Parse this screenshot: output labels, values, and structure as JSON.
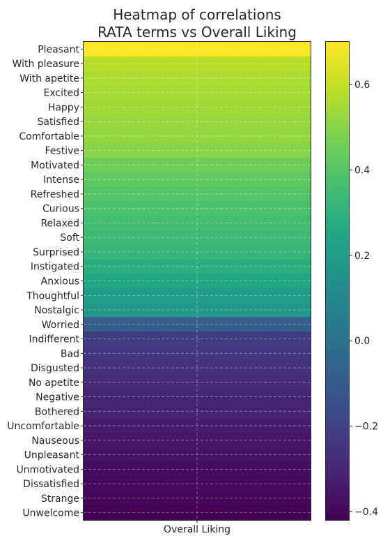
{
  "chart_data": {
    "type": "heatmap",
    "title": "Heatmap of correlations\nRATA terms vs Overall Liking",
    "xlabel": "",
    "ylabel": "",
    "columns": [
      "Overall Liking"
    ],
    "rows": [
      "Pleasant",
      "With pleasure",
      "With apetite",
      "Excited",
      "Happy",
      "Satisfied",
      "Comfortable",
      "Festive",
      "Motivated",
      "Intense",
      "Refreshed",
      "Curious",
      "Relaxed",
      "Soft",
      "Surprised",
      "Instigated",
      "Anxious",
      "Thoughtful",
      "Nostalgic",
      "Worried",
      "Indifferent",
      "Bad",
      "Disgusted",
      "No apetite",
      "Negative",
      "Bothered",
      "Uncomfortable",
      "Nauseous",
      "Unpleasant",
      "Unmotivated",
      "Dissatisfied",
      "Strange",
      "Unwelcome"
    ],
    "values": [
      0.7,
      0.58,
      0.56,
      0.55,
      0.54,
      0.53,
      0.52,
      0.5,
      0.45,
      0.42,
      0.4,
      0.38,
      0.36,
      0.34,
      0.32,
      0.28,
      0.25,
      0.2,
      0.18,
      -0.08,
      -0.22,
      -0.24,
      -0.26,
      -0.28,
      -0.3,
      -0.31,
      -0.33,
      -0.35,
      -0.36,
      -0.38,
      -0.39,
      -0.4,
      -0.42
    ],
    "colorbar": {
      "min": -0.42,
      "max": 0.7,
      "ticks": [
        -0.4,
        -0.2,
        0.0,
        0.2,
        0.4,
        0.6
      ],
      "tick_labels": [
        "−0.4",
        "−0.2",
        "0.0",
        "0.2",
        "0.4",
        "0.6"
      ],
      "colormap": "viridis"
    },
    "grid": true
  }
}
